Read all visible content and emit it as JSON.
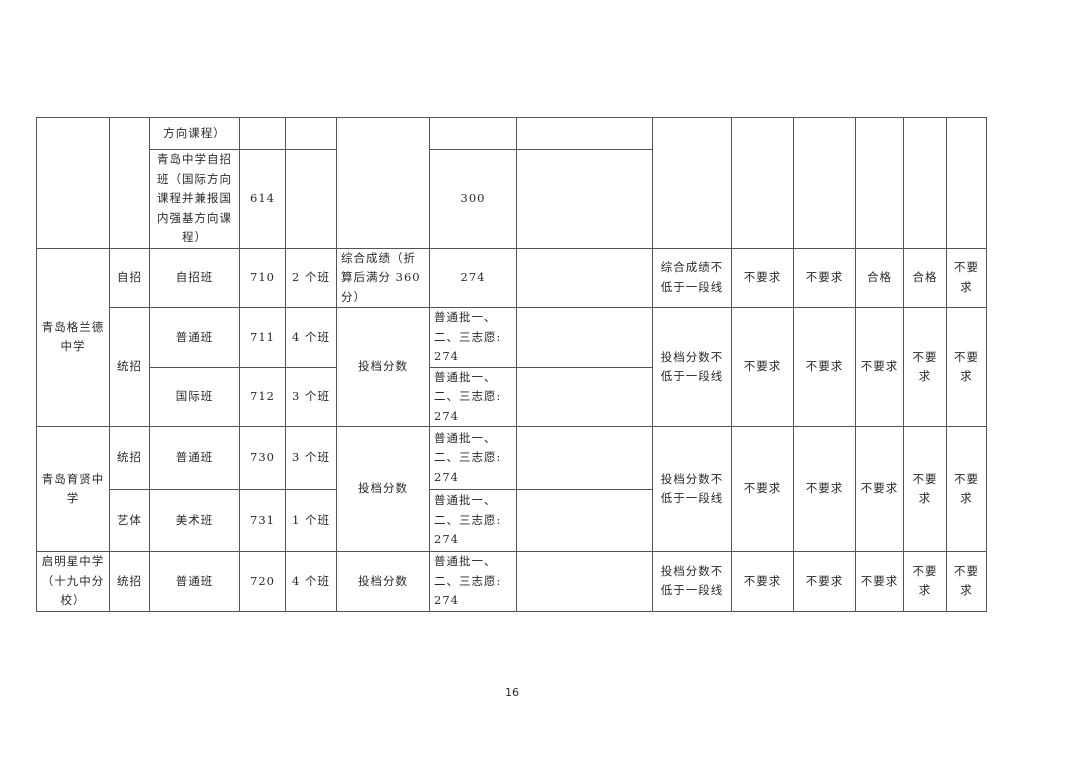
{
  "rows": {
    "r1": {
      "course": "方向课程）"
    },
    "r2": {
      "course": "青岛中学自招班（国际方向课程并兼报国内强基方向课程）",
      "code": "614",
      "score": "300"
    },
    "r3": {
      "school": "青岛格兰德中学",
      "type": "自招",
      "class": "自招班",
      "code": "710",
      "plan": "2 个班",
      "basis": "综合成绩（折算后满分 360 分）",
      "score": "274",
      "req": "综合成绩不低于一段线",
      "c1": "不要求",
      "c2": "不要求",
      "c3": "合格",
      "c4": "合格",
      "c5": "不要求"
    },
    "r4": {
      "type": "统招",
      "class": "普通班",
      "code": "711",
      "plan": "4 个班",
      "basis": "投档分数",
      "score": "普通批一、二、三志愿: 274",
      "req": "投档分数不低于一段线",
      "c1": "不要求",
      "c2": "不要求",
      "c3": "不要求",
      "c4": "不要求",
      "c5": "不要求"
    },
    "r5": {
      "class": "国际班",
      "code": "712",
      "plan": "3 个班",
      "score": "普通批一、二、三志愿: 274"
    },
    "r6": {
      "school": "青岛育贤中学",
      "type": "统招",
      "class": "普通班",
      "code": "730",
      "plan": "3 个班",
      "basis": "投档分数",
      "score": "普通批一、二、三志愿: 274",
      "req": "投档分数不低于一段线",
      "c1": "不要求",
      "c2": "不要求",
      "c3": "不要求",
      "c4": "不要求",
      "c5": "不要求"
    },
    "r7": {
      "type": "艺体",
      "class": "美术班",
      "code": "731",
      "plan": "1 个班",
      "score": "普通批一、二、三志愿: 274"
    },
    "r8": {
      "school": "启明星中学（十九中分校）",
      "type": "统招",
      "class": "普通班",
      "code": "720",
      "plan": "4 个班",
      "basis": "投档分数",
      "score": "普通批一、二、三志愿: 274",
      "req": "投档分数不低于一段线",
      "c1": "不要求",
      "c2": "不要求",
      "c3": "不要求",
      "c4": "不要求",
      "c5": "不要求"
    }
  },
  "page_number": "16"
}
